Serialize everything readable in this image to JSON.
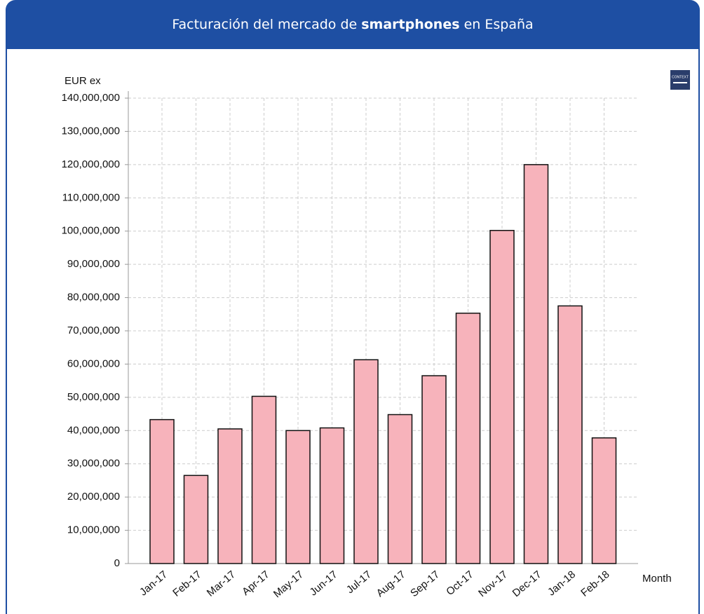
{
  "chart_data": {
    "type": "bar",
    "title_parts": [
      "Facturación del mercado de",
      "smartphones",
      "en España"
    ],
    "logo": "CONTEXT",
    "y_label": "EUR ex",
    "x_label": "Month",
    "categories": [
      "Jan-17",
      "Feb-17",
      "Mar-17",
      "Apr-17",
      "May-17",
      "Jun-17",
      "Jul-17",
      "Aug-17",
      "Sep-17",
      "Oct-17",
      "Nov-17",
      "Dec-17",
      "Jan-18",
      "Feb-18"
    ],
    "values": [
      43300000,
      26500000,
      40500000,
      50300000,
      40000000,
      40800000,
      61300000,
      44800000,
      56500000,
      75300000,
      100200000,
      120000000,
      77500000,
      37800000
    ],
    "color": "#f7b3bb",
    "ylim": [
      0,
      140000000
    ],
    "yticks": [
      0,
      {
        "value": 10000000,
        "label": "10,000,000"
      },
      {
        "value": 20000000,
        "label": "20,000,000"
      },
      {
        "value": 30000000,
        "label": "30,000,000"
      },
      {
        "value": 40000000,
        "label": "40,000,000"
      },
      {
        "value": 50000000,
        "label": "50,000,000"
      },
      {
        "value": 60000000,
        "label": "60,000,000"
      },
      {
        "value": 70000000,
        "label": "70,000,000"
      },
      {
        "value": 80000000,
        "label": "80,000,000"
      },
      {
        "value": 90000000,
        "label": "90,000,000"
      },
      {
        "value": 100000000,
        "label": "100,000,000"
      },
      {
        "value": 110000000,
        "label": "110,000,000"
      },
      {
        "value": 120000000,
        "label": "120,000,000"
      },
      {
        "value": 130000000,
        "label": "130,000,000"
      },
      {
        "value": 140000000,
        "label": "140,000,000"
      }
    ],
    "grid": true
  }
}
